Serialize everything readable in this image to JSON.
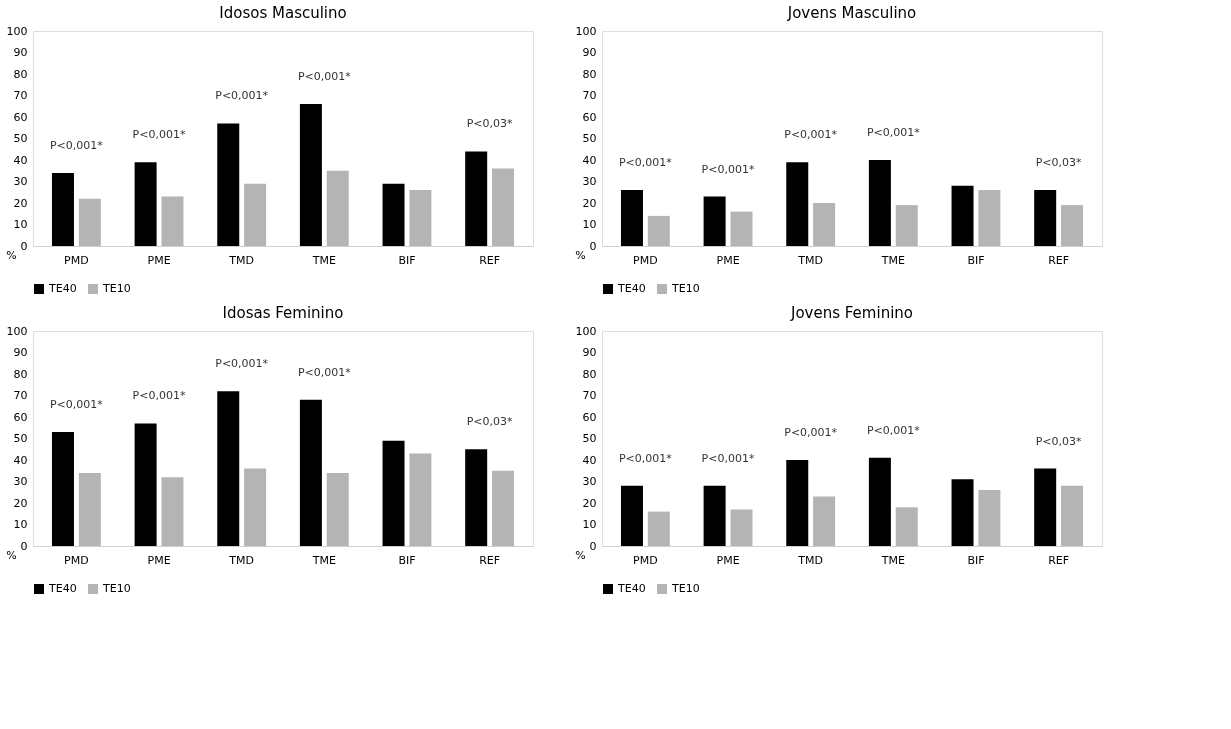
{
  "chart_data": [
    {
      "type": "bar",
      "title": "Idosos Masculino",
      "ylabel": "%",
      "categories": [
        "PMD",
        "PME",
        "TMD",
        "TME",
        "BIF",
        "REF"
      ],
      "ylim": [
        0,
        100
      ],
      "yticks": [
        0,
        10,
        20,
        30,
        40,
        50,
        60,
        70,
        80,
        90,
        100
      ],
      "grid": false,
      "legend": "bottom",
      "series": [
        {
          "name": "TE40",
          "color": "#000000",
          "values": [
            34,
            39,
            57,
            66,
            29,
            44
          ]
        },
        {
          "name": "TE10",
          "color": "#b4b4b4",
          "values": [
            22,
            23,
            29,
            35,
            26,
            36
          ]
        }
      ],
      "annotations": [
        {
          "text": "P<0,001*",
          "x": "PMD",
          "y": 34
        },
        {
          "text": "P<0,001*",
          "x": "PME",
          "y": 39
        },
        {
          "text": "P<0,001*",
          "x": "TMD",
          "y": 57
        },
        {
          "text": "P<0,001*",
          "x": "TME",
          "y": 66
        },
        {
          "text": "P<0,03*",
          "x": "REF",
          "y": 44
        }
      ]
    },
    {
      "type": "bar",
      "title": "Jovens Masculino",
      "ylabel": "%",
      "categories": [
        "PMD",
        "PME",
        "TMD",
        "TME",
        "BIF",
        "REF"
      ],
      "ylim": [
        0,
        100
      ],
      "yticks": [
        0,
        10,
        20,
        30,
        40,
        50,
        60,
        70,
        80,
        90,
        100
      ],
      "grid": false,
      "legend": "bottom",
      "series": [
        {
          "name": "TE40",
          "color": "#000000",
          "values": [
            26,
            23,
            39,
            40,
            28,
            26
          ]
        },
        {
          "name": "TE10",
          "color": "#b4b4b4",
          "values": [
            14,
            16,
            20,
            19,
            26,
            19
          ]
        }
      ],
      "annotations": [
        {
          "text": "P<0,001*",
          "x": "PMD",
          "y": 26
        },
        {
          "text": "P<0,001*",
          "x": "PME",
          "y": 23
        },
        {
          "text": "P<0,001*",
          "x": "TMD",
          "y": 39
        },
        {
          "text": "P<0,001*",
          "x": "TME",
          "y": 40
        },
        {
          "text": "P<0,03*",
          "x": "REF",
          "y": 26
        }
      ]
    },
    {
      "type": "bar",
      "title": "Idosas Feminino",
      "ylabel": "%",
      "categories": [
        "PMD",
        "PME",
        "TMD",
        "TME",
        "BIF",
        "REF"
      ],
      "ylim": [
        0,
        100
      ],
      "yticks": [
        0,
        10,
        20,
        30,
        40,
        50,
        60,
        70,
        80,
        90,
        100
      ],
      "grid": false,
      "legend": "bottom",
      "series": [
        {
          "name": "TE40",
          "color": "#000000",
          "values": [
            53,
            57,
            72,
            68,
            49,
            45
          ]
        },
        {
          "name": "TE10",
          "color": "#b4b4b4",
          "values": [
            34,
            32,
            36,
            34,
            43,
            35
          ]
        }
      ],
      "annotations": [
        {
          "text": "P<0,001*",
          "x": "PMD",
          "y": 53
        },
        {
          "text": "P<0,001*",
          "x": "PME",
          "y": 57
        },
        {
          "text": "P<0,001*",
          "x": "TMD",
          "y": 72
        },
        {
          "text": "P<0,001*",
          "x": "TME",
          "y": 68
        },
        {
          "text": "P<0,03*",
          "x": "REF",
          "y": 45
        }
      ]
    },
    {
      "type": "bar",
      "title": "Jovens Feminino",
      "ylabel": "%",
      "categories": [
        "PMD",
        "PME",
        "TMD",
        "TME",
        "BIF",
        "REF"
      ],
      "ylim": [
        0,
        100
      ],
      "yticks": [
        0,
        10,
        20,
        30,
        40,
        50,
        60,
        70,
        80,
        90,
        100
      ],
      "grid": false,
      "legend": "bottom",
      "series": [
        {
          "name": "TE40",
          "color": "#000000",
          "values": [
            28,
            28,
            40,
            41,
            31,
            36
          ]
        },
        {
          "name": "TE10",
          "color": "#b4b4b4",
          "values": [
            16,
            17,
            23,
            18,
            26,
            28
          ]
        }
      ],
      "annotations": [
        {
          "text": "P<0,001*",
          "x": "PMD",
          "y": 28
        },
        {
          "text": "P<0,001*",
          "x": "PME",
          "y": 28
        },
        {
          "text": "P<0,001*",
          "x": "TMD",
          "y": 40
        },
        {
          "text": "P<0,001*",
          "x": "TME",
          "y": 41
        },
        {
          "text": "P<0,03*",
          "x": "REF",
          "y": 36
        }
      ]
    }
  ]
}
